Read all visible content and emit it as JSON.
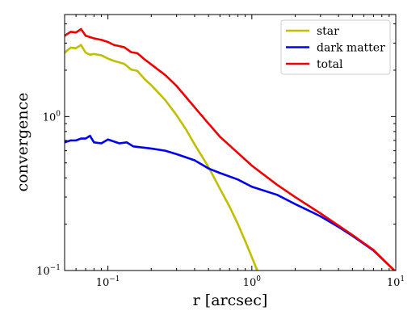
{
  "chart_data": {
    "type": "line",
    "xlabel": "r [arcsec]",
    "ylabel": "convergence",
    "xscale": "log",
    "yscale": "log",
    "xlim": [
      0.05,
      10
    ],
    "ylim": [
      0.1,
      4.6
    ],
    "grid": false,
    "legend_position": "top-right",
    "x_ticks": [
      {
        "value": 0.1,
        "label": "10^-1",
        "base": "10",
        "exp": "−1"
      },
      {
        "value": 1,
        "label": "10^0",
        "base": "10",
        "exp": "0"
      },
      {
        "value": 10,
        "label": "10^1",
        "base": "10",
        "exp": "1"
      }
    ],
    "y_ticks": [
      {
        "value": 0.1,
        "label": "10^-1",
        "base": "10",
        "exp": "−1"
      },
      {
        "value": 1,
        "label": "10^0",
        "base": "10",
        "exp": "0"
      }
    ],
    "series": [
      {
        "name": "star",
        "color": "#bfbf00",
        "points": [
          [
            0.05,
            2.6
          ],
          [
            0.055,
            2.8
          ],
          [
            0.06,
            2.78
          ],
          [
            0.065,
            2.92
          ],
          [
            0.07,
            2.6
          ],
          [
            0.075,
            2.52
          ],
          [
            0.08,
            2.55
          ],
          [
            0.09,
            2.5
          ],
          [
            0.1,
            2.38
          ],
          [
            0.11,
            2.3
          ],
          [
            0.13,
            2.2
          ],
          [
            0.145,
            2.02
          ],
          [
            0.16,
            1.98
          ],
          [
            0.18,
            1.75
          ],
          [
            0.2,
            1.6
          ],
          [
            0.25,
            1.28
          ],
          [
            0.3,
            1.02
          ],
          [
            0.35,
            0.82
          ],
          [
            0.4,
            0.66
          ],
          [
            0.5,
            0.47
          ],
          [
            0.6,
            0.34
          ],
          [
            0.7,
            0.26
          ],
          [
            0.8,
            0.2
          ],
          [
            0.9,
            0.155
          ],
          [
            1.0,
            0.122
          ],
          [
            1.1,
            0.098
          ]
        ]
      },
      {
        "name": "dark matter",
        "color": "#0000ee",
        "points": [
          [
            0.05,
            0.68
          ],
          [
            0.055,
            0.7
          ],
          [
            0.06,
            0.7
          ],
          [
            0.065,
            0.72
          ],
          [
            0.07,
            0.72
          ],
          [
            0.075,
            0.75
          ],
          [
            0.08,
            0.68
          ],
          [
            0.09,
            0.67
          ],
          [
            0.1,
            0.71
          ],
          [
            0.12,
            0.67
          ],
          [
            0.135,
            0.68
          ],
          [
            0.15,
            0.64
          ],
          [
            0.2,
            0.62
          ],
          [
            0.25,
            0.6
          ],
          [
            0.3,
            0.57
          ],
          [
            0.4,
            0.52
          ],
          [
            0.5,
            0.46
          ],
          [
            0.6,
            0.43
          ],
          [
            0.8,
            0.39
          ],
          [
            1.0,
            0.35
          ],
          [
            1.5,
            0.31
          ],
          [
            2.0,
            0.27
          ],
          [
            3.0,
            0.225
          ],
          [
            4.0,
            0.192
          ],
          [
            5.0,
            0.168
          ],
          [
            7.0,
            0.135
          ],
          [
            10.0,
            0.098
          ]
        ]
      },
      {
        "name": "total",
        "color": "#ee0000",
        "points": [
          [
            0.05,
            3.35
          ],
          [
            0.055,
            3.55
          ],
          [
            0.06,
            3.52
          ],
          [
            0.065,
            3.7
          ],
          [
            0.07,
            3.35
          ],
          [
            0.08,
            3.22
          ],
          [
            0.09,
            3.15
          ],
          [
            0.1,
            3.05
          ],
          [
            0.11,
            2.92
          ],
          [
            0.13,
            2.82
          ],
          [
            0.145,
            2.62
          ],
          [
            0.16,
            2.58
          ],
          [
            0.18,
            2.35
          ],
          [
            0.2,
            2.18
          ],
          [
            0.25,
            1.86
          ],
          [
            0.3,
            1.58
          ],
          [
            0.4,
            1.15
          ],
          [
            0.5,
            0.9
          ],
          [
            0.6,
            0.74
          ],
          [
            0.8,
            0.58
          ],
          [
            1.0,
            0.48
          ],
          [
            1.5,
            0.36
          ],
          [
            2.0,
            0.3
          ],
          [
            3.0,
            0.235
          ],
          [
            4.0,
            0.196
          ],
          [
            5.0,
            0.17
          ],
          [
            7.0,
            0.136
          ],
          [
            10.0,
            0.098
          ]
        ]
      }
    ]
  }
}
